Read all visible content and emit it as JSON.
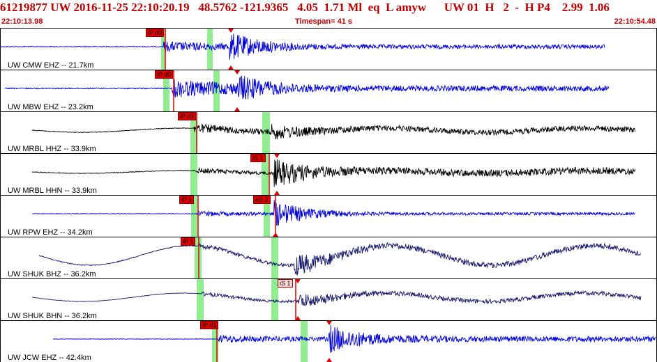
{
  "header": {
    "title": "61219877 UW 2016-11-25 22:10:20.19   48.5762 -121.9365   4.05  1.71 Ml  eq  L amyw      UW 01  H   2  -  H P4    2.99  1.06",
    "start_time": "22:10:13.98",
    "timespan": "Timespan=  41 s",
    "end_time": "22:10:54.48"
  },
  "colors": {
    "title": "#c00000",
    "blue_trace": "#0000dd",
    "black_trace": "#000000",
    "navy_trace": "#1a1a6e",
    "pick_red": "#e00000",
    "pick_sel": "#fbd4d4",
    "green_band": "#90ee90"
  },
  "traces": [
    {
      "label": "UW CMW EHZ -- 21.7km",
      "color": "#0000dd",
      "picks": [
        {
          "tag": "iP d0",
          "sel": false
        }
      ]
    },
    {
      "label": "UW MBW EHZ -- 23.2km",
      "color": "#0000dd",
      "picks": [
        {
          "tag": "iP d0",
          "sel": false
        }
      ]
    },
    {
      "label": "UW MRBL HHZ -- 33.9km",
      "color": "#000000",
      "picks": [
        {
          "tag": "iP d1",
          "sel": false
        }
      ]
    },
    {
      "label": "UW MRBL HHN -- 33.9km",
      "color": "#000000",
      "picks": [
        {
          "tag": "iS 1",
          "sel": false
        }
      ]
    },
    {
      "label": "UW RPW EHZ -- 34.2km",
      "color": "#0000dd",
      "picks": [
        {
          "tag": "iP 1",
          "sel": false
        },
        {
          "tag": "eS 2",
          "sel": false
        }
      ]
    },
    {
      "label": "UW SHUK BHZ -- 36.2km",
      "color": "#1a1a6e",
      "picks": [
        {
          "tag": "iP 1",
          "sel": false
        }
      ]
    },
    {
      "label": "UW SHUK BHN -- 36.2km",
      "color": "#1a1a6e",
      "picks": [
        {
          "tag": "iS 1",
          "sel": true
        }
      ]
    },
    {
      "label": "UW JCW EHZ -- 42.4km",
      "color": "#0000dd",
      "picks": [
        {
          "tag": "iP d1",
          "sel": false
        }
      ]
    }
  ]
}
